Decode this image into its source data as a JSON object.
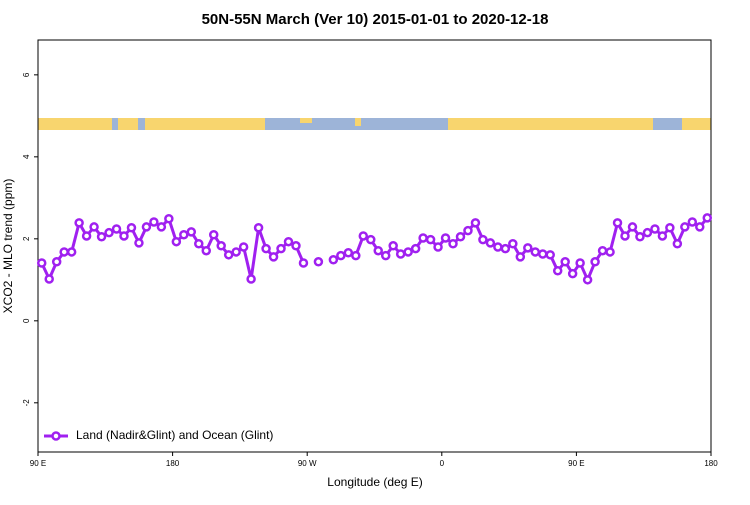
{
  "chart_data": {
    "type": "line",
    "title": "50N-55N March (Ver 10)   2015-01-01 to 2020-12-18",
    "x_label": "Longitude (deg E)",
    "y_label": "XCO2 - MLO trend (ppm)",
    "xlim": [
      90,
      540
    ],
    "xticks": [
      {
        "value": 90,
        "label": "90 E"
      },
      180,
      {
        "value": 270,
        "label": "90 W"
      },
      {
        "value": 360,
        "label": "0"
      },
      {
        "value": 450,
        "label": "90 E"
      },
      {
        "value": 540,
        "label": "180"
      }
    ],
    "ylim": [
      -3.2,
      6.85
    ],
    "yticks": [
      -2,
      0,
      2,
      4,
      6
    ],
    "legend": "bottom-left",
    "x": [
      92.5,
      97.5,
      102.5,
      107.5,
      112.5,
      117.5,
      122.5,
      127.5,
      132.5,
      137.5,
      142.5,
      147.5,
      152.5,
      157.5,
      162.5,
      167.5,
      172.5,
      177.5,
      182.5,
      187.5,
      192.5,
      197.5,
      202.5,
      207.5,
      212.5,
      217.5,
      222.5,
      227.5,
      232.5,
      237.5,
      242.5,
      247.5,
      252.5,
      257.5,
      262.5,
      267.5,
      272.5,
      277.5,
      282.5,
      287.5,
      292.5,
      297.5,
      302.5,
      307.5,
      312.5,
      317.5,
      322.5,
      327.5,
      332.5,
      337.5,
      342.5,
      347.5,
      352.5,
      357.5,
      362.5,
      367.5,
      372.5,
      377.5,
      382.5,
      387.5,
      392.5,
      397.5,
      402.5,
      407.5,
      412.5,
      417.5,
      422.5,
      427.5,
      432.5,
      437.5,
      442.5,
      447.5,
      452.5,
      457.5,
      462.5,
      467.5,
      472.5,
      477.5,
      482.5,
      487.5,
      492.5,
      497.5,
      502.5,
      507.5,
      512.5,
      517.5,
      522.5,
      527.5,
      532.5,
      537.5
    ],
    "series": [
      {
        "name": "Land (Nadir&Glint) and Ocean (Glint)",
        "color": "#a020f0",
        "values": [
          1.41,
          1.02,
          1.44,
          1.68,
          1.68,
          2.39,
          2.07,
          2.29,
          2.05,
          2.15,
          2.24,
          2.07,
          2.27,
          1.9,
          2.29,
          2.41,
          2.29,
          2.49,
          1.93,
          2.1,
          2.17,
          1.88,
          1.71,
          2.1,
          1.83,
          1.61,
          1.68,
          1.8,
          1.02,
          2.27,
          1.76,
          1.56,
          1.76,
          1.93,
          1.83,
          1.41,
          null,
          1.44,
          null,
          1.49,
          1.59,
          1.66,
          1.59,
          2.07,
          1.98,
          1.71,
          1.59,
          1.83,
          1.63,
          1.68,
          1.76,
          2.02,
          1.98,
          1.8,
          2.02,
          1.88,
          2.05,
          2.2,
          2.39,
          1.98,
          1.9,
          1.8,
          1.76,
          1.88,
          1.56,
          1.78,
          1.68,
          1.63,
          1.61,
          1.22,
          1.44,
          1.15,
          1.41,
          1.0,
          1.44,
          1.71,
          1.68,
          2.39,
          2.07,
          2.29,
          2.05,
          2.15,
          2.24,
          2.07,
          2.27,
          1.88,
          2.29,
          2.41,
          2.29,
          2.51
        ]
      }
    ]
  }
}
